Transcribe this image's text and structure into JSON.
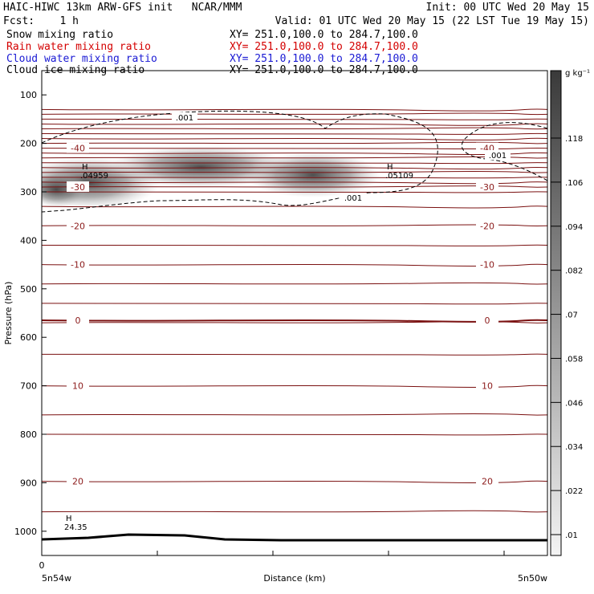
{
  "header": {
    "line1_left": "HAIC-HIWC 13km ARW-GFS init   NCAR/MMM",
    "line1_right": "Init: 00 UTC Wed 20 May 15",
    "fcst": "Fcst:    1 h",
    "valid": "Valid: 01 UTC Wed 20 May 15 (22 LST Tue 19 May 15)",
    "fields": [
      {
        "name": "Snow mixing ratio",
        "xy": "XY= 251.0,100.0 to 284.7,100.0",
        "color": "#000000"
      },
      {
        "name": "Rain water mixing ratio",
        "xy": "XY= 251.0,100.0 to 284.7,100.0",
        "color": "#d40000"
      },
      {
        "name": "Cloud water mixing ratio",
        "xy": "XY= 251.0,100.0 to 284.7,100.0",
        "color": "#1a1ad4"
      },
      {
        "name": "Cloud ice mixing ratio",
        "xy": "XY= 251.0,100.0 to 284.7,100.0",
        "color": "#000000"
      }
    ]
  },
  "chart_data": {
    "type": "heatmap",
    "ylabel": "Pressure (hPa)",
    "xlabel": "Distance (km)",
    "x_left_label": "5n54w",
    "x_right_label": "5n50w",
    "x_ticks": [
      "0"
    ],
    "y_ticks": [
      100,
      200,
      300,
      400,
      500,
      600,
      700,
      800,
      900,
      1000
    ],
    "ylim": [
      50,
      1050
    ],
    "y_inverted": true,
    "colorbar": {
      "units": "g kg⁻¹",
      "ticks": [
        ".118",
        ".106",
        ".094",
        ".082",
        ".07",
        ".058",
        ".046",
        ".034",
        ".022",
        ".01"
      ]
    },
    "temperature_contours": [
      {
        "label": "-40",
        "p": 210
      },
      {
        "label": "-30",
        "p": 290
      },
      {
        "label": "-20",
        "p": 370
      },
      {
        "label": "-10",
        "p": 450
      },
      {
        "label": "0",
        "p": 565
      },
      {
        "label": "10",
        "p": 700
      },
      {
        "label": "20",
        "p": 897
      }
    ],
    "snow_contour_label": ".001",
    "extrema": [
      {
        "mark": "H",
        "value": ".04959",
        "x_km": 60,
        "p": 265
      },
      {
        "mark": "H",
        "value": ".05109",
        "x_km": 440,
        "p": 265
      },
      {
        "mark": "H",
        "value": "24.35",
        "x_km": 40,
        "p": 990
      }
    ]
  }
}
